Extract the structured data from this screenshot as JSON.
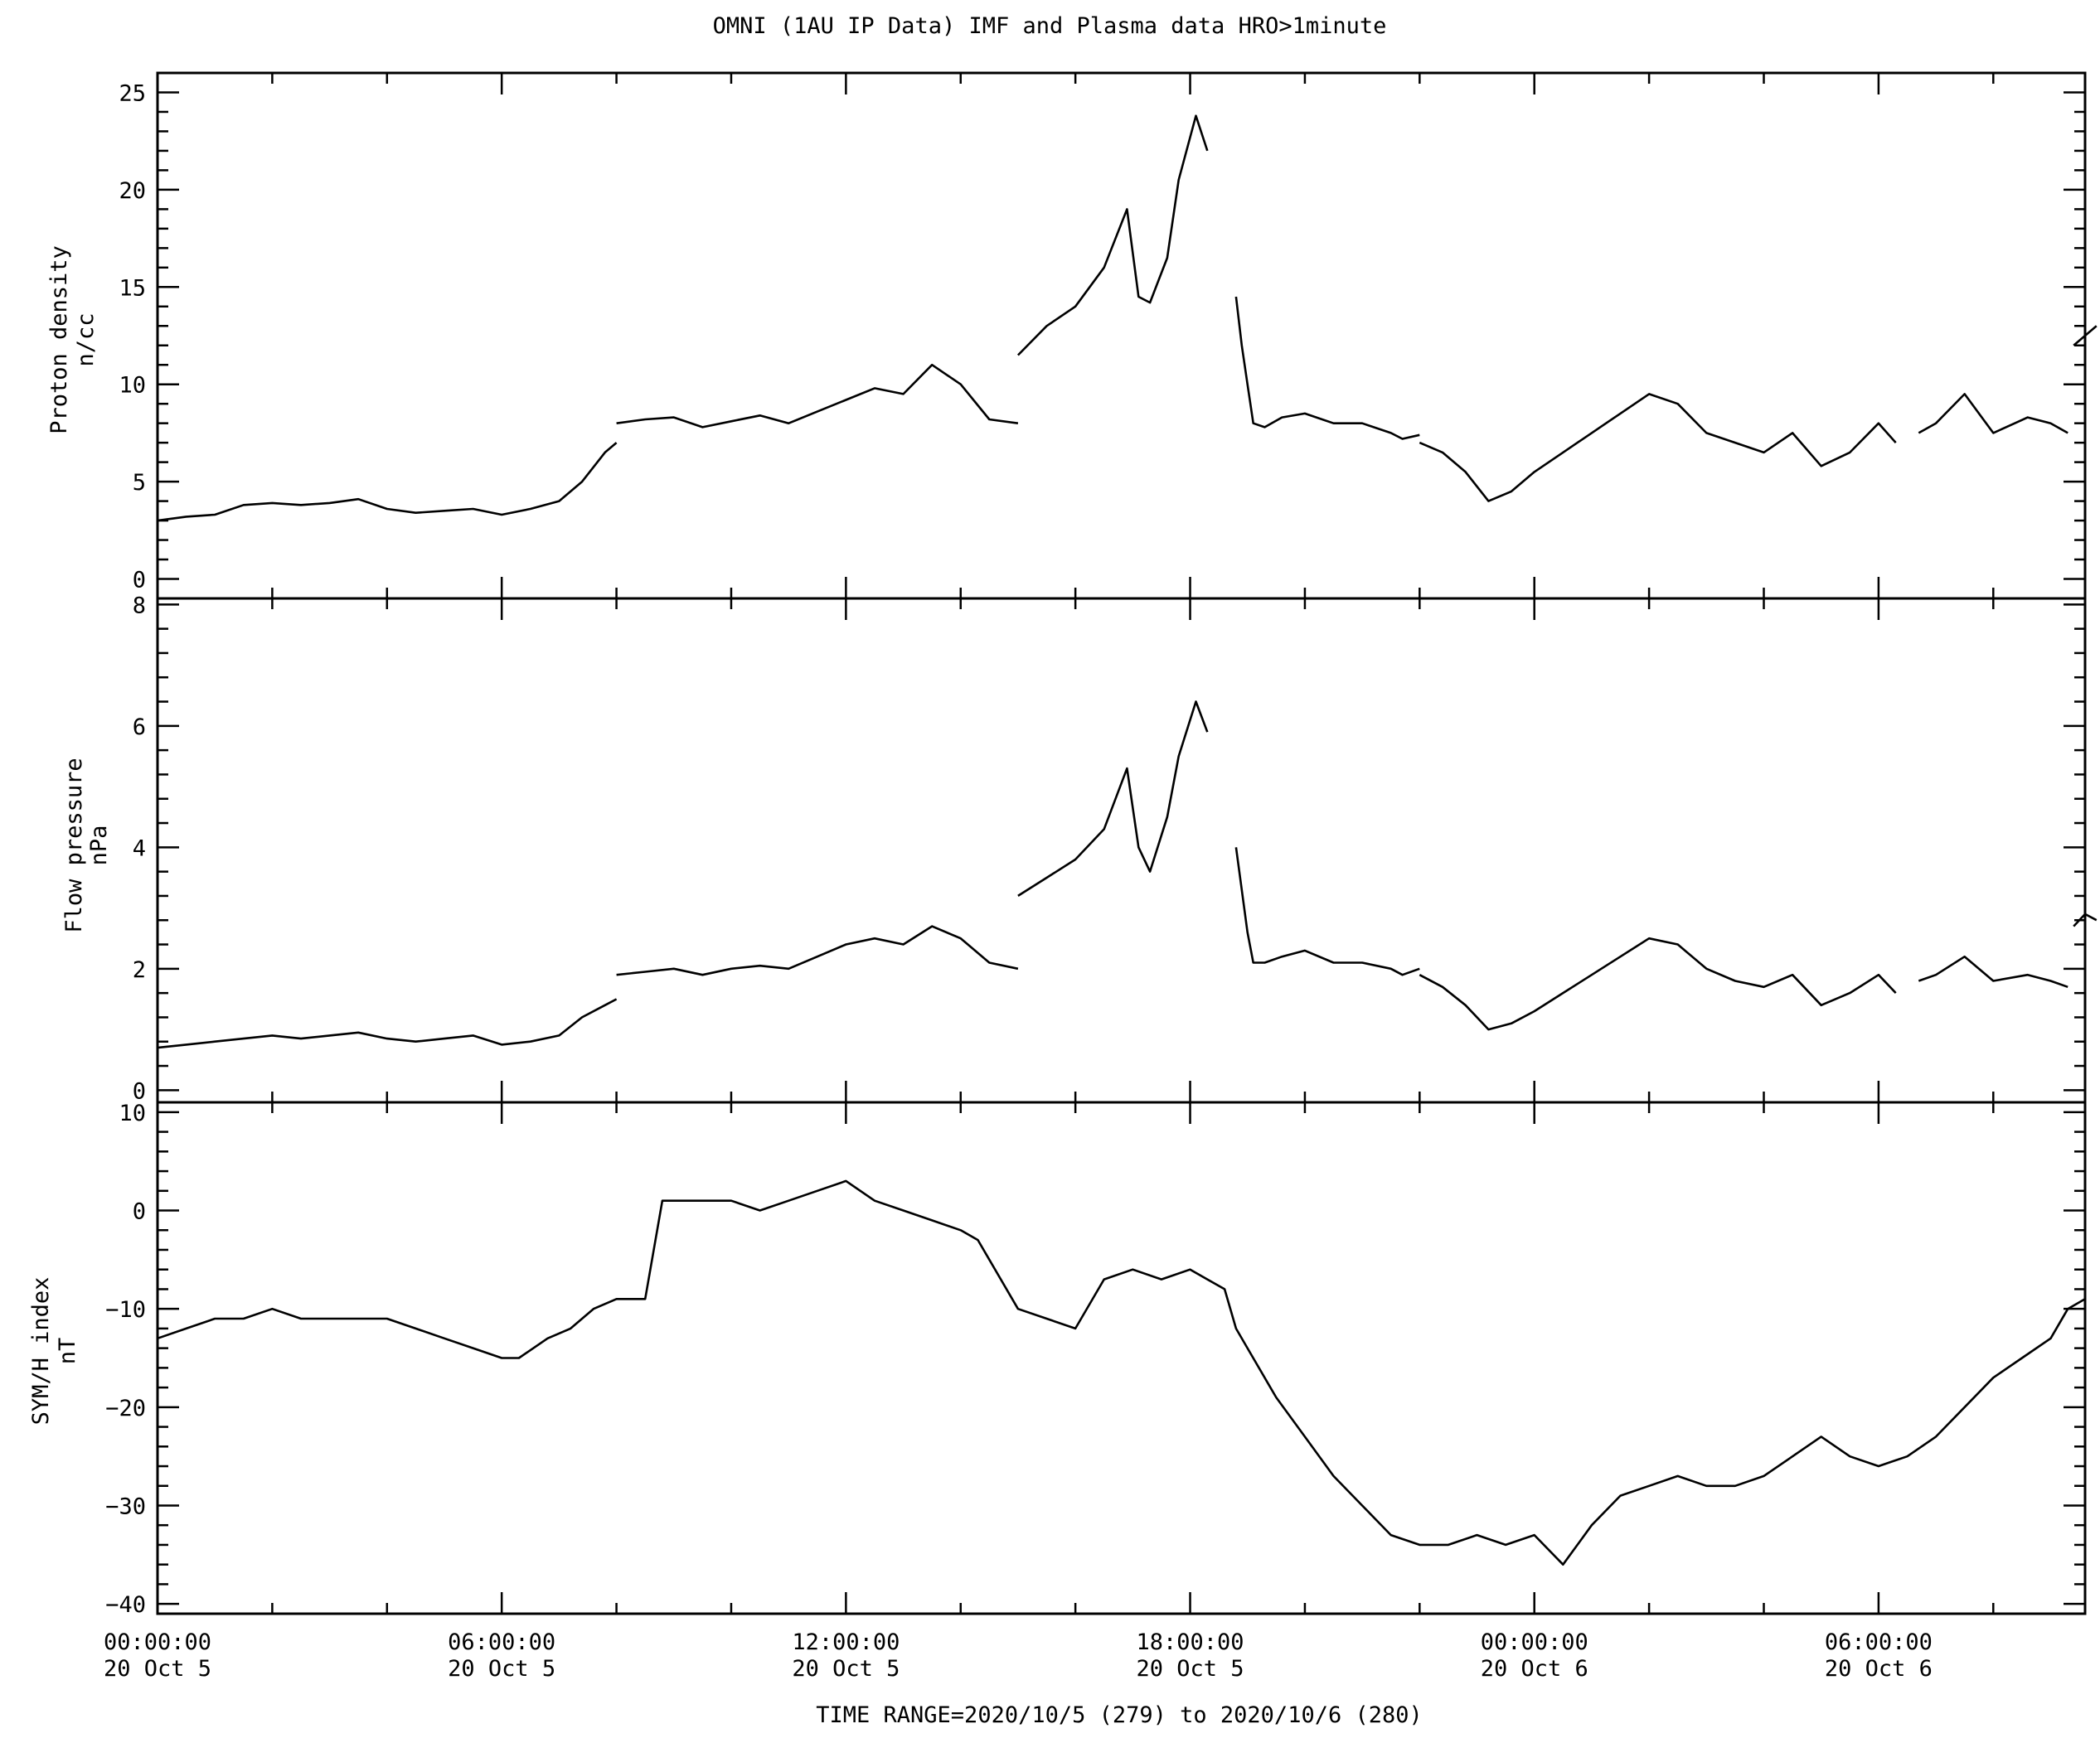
{
  "title": "OMNI (1AU IP Data)  IMF and Plasma data  HRO>1minute",
  "time_range": "TIME RANGE=2020/10/5 (279) to 2020/10/6 (280)",
  "x_tick_labels": [
    {
      "time": "00:00:00",
      "date": "20 Oct  5",
      "hour": 0
    },
    {
      "time": "06:00:00",
      "date": "20 Oct  5",
      "hour": 6
    },
    {
      "time": "12:00:00",
      "date": "20 Oct  5",
      "hour": 12
    },
    {
      "time": "18:00:00",
      "date": "20 Oct  5",
      "hour": 18
    },
    {
      "time": "00:00:00",
      "date": "20 Oct  6",
      "hour": 24
    },
    {
      "time": "06:00:00",
      "date": "20 Oct  6",
      "hour": 30
    }
  ],
  "chart_data": [
    {
      "type": "line",
      "ylabel": "Proton density",
      "yunit": "n/cc",
      "xlim": [
        0,
        33.6
      ],
      "ylim": [
        -1,
        26
      ],
      "yticks": [
        0,
        5,
        10,
        15,
        20,
        25
      ],
      "series": [
        {
          "segments": [
            {
              "x": [
                0,
                0.5,
                1.0,
                1.5,
                2.0,
                2.5,
                3.0,
                3.5,
                4.0,
                4.5,
                5.0,
                5.5,
                6.0,
                6.5,
                7.0,
                7.4,
                7.8,
                8.0
              ],
              "y": [
                3.0,
                3.2,
                3.3,
                3.8,
                3.9,
                3.8,
                3.9,
                4.1,
                3.6,
                3.4,
                3.5,
                3.6,
                3.3,
                3.6,
                4.0,
                5.0,
                6.5,
                7.0
              ]
            },
            {
              "x": [
                8.0,
                8.5,
                9.0,
                9.5,
                10.0,
                10.5,
                11.0,
                11.5,
                12.0,
                12.5,
                13.0,
                13.5,
                14.0,
                14.5,
                15.0
              ],
              "y": [
                8.0,
                8.2,
                8.3,
                7.8,
                8.1,
                8.4,
                8.0,
                8.6,
                9.2,
                9.8,
                9.5,
                11.0,
                10.0,
                8.2,
                8.0
              ]
            },
            {
              "x": [
                15.0,
                15.5,
                16.0,
                16.5,
                16.9,
                17.1,
                17.3,
                17.6,
                17.8,
                18.1,
                18.3
              ],
              "y": [
                11.5,
                13.0,
                14.0,
                16.0,
                19.0,
                14.5,
                14.2,
                16.5,
                20.5,
                23.8,
                22.0
              ]
            },
            {
              "x": [
                18.8,
                18.9,
                19.0,
                19.1,
                19.3,
                19.6,
                20.0,
                20.5,
                21.0,
                21.5,
                21.7,
                22.0
              ],
              "y": [
                14.5,
                12.0,
                10.0,
                8.0,
                7.8,
                8.3,
                8.5,
                8.0,
                8.0,
                7.5,
                7.2,
                7.4
              ]
            },
            {
              "x": [
                22.0,
                22.4,
                22.8,
                23.2,
                23.6,
                24.0,
                24.5,
                25.0,
                25.5,
                26.0,
                26.5,
                27.0,
                27.5,
                28.0,
                28.5,
                29.0,
                29.5,
                30.0,
                30.3
              ],
              "y": [
                7.0,
                6.5,
                5.5,
                4.0,
                4.5,
                5.5,
                6.5,
                7.5,
                8.5,
                9.5,
                9.0,
                7.5,
                7.0,
                6.5,
                7.5,
                5.8,
                6.5,
                8.0,
                7.0
              ]
            },
            {
              "x": [
                30.7,
                31.0,
                31.5,
                32.0,
                32.6,
                33.0,
                33.3
              ],
              "y": [
                7.5,
                8.0,
                9.5,
                7.5,
                8.3,
                8.0,
                7.5
              ]
            },
            {
              "x": [
                33.4,
                33.6,
                33.8
              ],
              "y": [
                12.0,
                12.5,
                13.0
              ]
            }
          ]
        }
      ]
    },
    {
      "type": "line",
      "ylabel": "Flow pressure",
      "yunit": "nPa",
      "xlim": [
        0,
        33.6
      ],
      "ylim": [
        -0.2,
        8.1
      ],
      "yticks": [
        0,
        2,
        4,
        6,
        8
      ],
      "series": [
        {
          "segments": [
            {
              "x": [
                0,
                0.5,
                1.0,
                1.5,
                2.0,
                2.5,
                3.0,
                3.5,
                4.0,
                4.5,
                5.0,
                5.5,
                6.0,
                6.5,
                7.0,
                7.4,
                7.8,
                8.0
              ],
              "y": [
                0.7,
                0.75,
                0.8,
                0.85,
                0.9,
                0.85,
                0.9,
                0.95,
                0.85,
                0.8,
                0.85,
                0.9,
                0.75,
                0.8,
                0.9,
                1.2,
                1.4,
                1.5
              ]
            },
            {
              "x": [
                8.0,
                8.5,
                9.0,
                9.5,
                10.0,
                10.5,
                11.0,
                11.5,
                12.0,
                12.5,
                13.0,
                13.5,
                14.0,
                14.5,
                15.0
              ],
              "y": [
                1.9,
                1.95,
                2.0,
                1.9,
                2.0,
                2.05,
                2.0,
                2.2,
                2.4,
                2.5,
                2.4,
                2.7,
                2.5,
                2.1,
                2.0
              ]
            },
            {
              "x": [
                15.0,
                15.5,
                16.0,
                16.5,
                16.9,
                17.1,
                17.3,
                17.6,
                17.8,
                18.1,
                18.3
              ],
              "y": [
                3.2,
                3.5,
                3.8,
                4.3,
                5.3,
                4.0,
                3.6,
                4.5,
                5.5,
                6.4,
                5.9
              ]
            },
            {
              "x": [
                18.8,
                18.9,
                19.0,
                19.1,
                19.3,
                19.6,
                20.0,
                20.5,
                21.0,
                21.5,
                21.7,
                22.0
              ],
              "y": [
                4.0,
                3.3,
                2.6,
                2.1,
                2.1,
                2.2,
                2.3,
                2.1,
                2.1,
                2.0,
                1.9,
                2.0
              ]
            },
            {
              "x": [
                22.0,
                22.4,
                22.8,
                23.2,
                23.6,
                24.0,
                24.5,
                25.0,
                25.5,
                26.0,
                26.5,
                27.0,
                27.5,
                28.0,
                28.5,
                29.0,
                29.5,
                30.0,
                30.3
              ],
              "y": [
                1.9,
                1.7,
                1.4,
                1.0,
                1.1,
                1.3,
                1.6,
                1.9,
                2.2,
                2.5,
                2.4,
                2.0,
                1.8,
                1.7,
                1.9,
                1.4,
                1.6,
                1.9,
                1.6
              ]
            },
            {
              "x": [
                30.7,
                31.0,
                31.5,
                32.0,
                32.6,
                33.0,
                33.3
              ],
              "y": [
                1.8,
                1.9,
                2.2,
                1.8,
                1.9,
                1.8,
                1.7
              ]
            },
            {
              "x": [
                33.4,
                33.6,
                33.8
              ],
              "y": [
                2.7,
                2.9,
                2.8
              ]
            }
          ]
        }
      ]
    },
    {
      "type": "line",
      "ylabel": "SYM/H index",
      "yunit": "nT",
      "xlim": [
        0,
        33.6
      ],
      "ylim": [
        -41,
        11
      ],
      "yticks": [
        -40,
        -30,
        -20,
        -10,
        0,
        10
      ],
      "series": [
        {
          "segments": [
            {
              "x": [
                0,
                0.5,
                1.0,
                1.5,
                2.0,
                2.5,
                3.0,
                3.5,
                4.0,
                4.5,
                5.0,
                5.5,
                6.0,
                6.3,
                6.8,
                7.2,
                7.6,
                8.0,
                8.5,
                8.8,
                9.0,
                9.5,
                10.0,
                10.5,
                11.0,
                11.5,
                12.0,
                12.5,
                13.0,
                13.5,
                14.0,
                14.3,
                14.5,
                15.0,
                15.5,
                16.0,
                16.5,
                17.0,
                17.5,
                18.0,
                18.3,
                18.6,
                18.8,
                19.0,
                19.5,
                20.0,
                20.5,
                21.0,
                21.5,
                22.0,
                22.5,
                23.0,
                23.5,
                24.0,
                24.5,
                25.0,
                25.5,
                26.0,
                26.5,
                27.0,
                27.5,
                28.0,
                28.5,
                29.0,
                29.5,
                30.0,
                30.5,
                31.0,
                31.5,
                32.0,
                32.5,
                33.0,
                33.3,
                33.6
              ],
              "y": [
                -13,
                -12,
                -11,
                -11,
                -10,
                -11,
                -11,
                -11,
                -11,
                -12,
                -13,
                -14,
                -15,
                -15,
                -13,
                -12,
                -10,
                -9,
                -9,
                1,
                1,
                1,
                1,
                0,
                1,
                2,
                3,
                1,
                0,
                -1,
                -2,
                -3,
                -5,
                -10,
                -11,
                -12,
                -7,
                -6,
                -7,
                -6,
                -7,
                -8,
                -12,
                -14,
                -19,
                -23,
                -27,
                -30,
                -33,
                -34,
                -34,
                -33,
                -34,
                -33,
                -36,
                -32,
                -29,
                -28,
                -27,
                -28,
                -28,
                -27,
                -25,
                -23,
                -25,
                -26,
                -25,
                -23,
                -20,
                -17,
                -15,
                -13,
                -10,
                -9
              ]
            }
          ]
        }
      ]
    }
  ]
}
